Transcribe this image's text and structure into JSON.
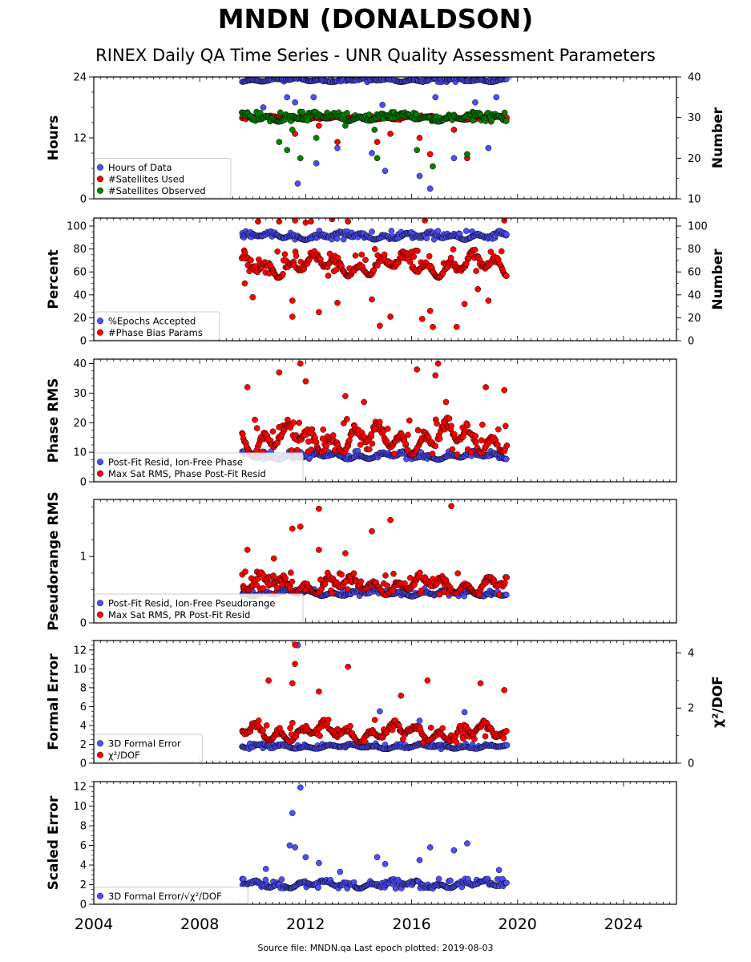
{
  "header": {
    "title": "MNDN (DONALDSON)",
    "subtitle": "RINEX Daily QA Time Series - UNR Quality Assessment Parameters"
  },
  "footer": {
    "source_note": "Source file: MNDN.qa Last epoch plotted: 2019-08-03"
  },
  "colors": {
    "blue": "#4d4dff",
    "red": "#ff0000",
    "green": "#009000",
    "navy": "#1a1a6e",
    "marker_edge": "#000000"
  },
  "chart_data": [
    {
      "type": "scatter",
      "xlim": [
        2004,
        2026
      ],
      "x_ticks": [
        "2004",
        "2008",
        "2012",
        "2016",
        "2020",
        "2024"
      ],
      "ylabel": "Hours",
      "ylim": [
        0,
        24
      ],
      "y_ticks": [
        "0",
        "12",
        "24"
      ],
      "y2label": "Number",
      "y2lim": [
        10,
        40
      ],
      "y2_ticks": [
        "10",
        "20",
        "30",
        "40"
      ],
      "legend_position": "lower-left",
      "series": [
        {
          "name": "Hours of Data",
          "color": "#4d4dff",
          "axis": "left",
          "band": [
            23.0,
            24.0
          ],
          "drops": [
            [
              2011.3,
              20
            ],
            [
              2011.6,
              19
            ],
            [
              2011.8,
              16
            ],
            [
              2010.4,
              18
            ],
            [
              2009.8,
              17
            ],
            [
              2012.4,
              7
            ],
            [
              2013.2,
              10
            ],
            [
              2014.5,
              9
            ],
            [
              2015.0,
              5.5
            ],
            [
              2016.3,
              4.5
            ],
            [
              2016.7,
              2
            ],
            [
              2017.6,
              8
            ],
            [
              2018.9,
              10
            ],
            [
              2019.2,
              20
            ],
            [
              2011.7,
              3
            ],
            [
              2012.3,
              20
            ],
            [
              2018.4,
              19
            ],
            [
              2014.9,
              18.5
            ],
            [
              2016.9,
              20
            ]
          ]
        },
        {
          "name": "#Satellites Used",
          "color": "#ff0000",
          "axis": "right",
          "band": [
            29.5,
            30.5
          ],
          "drops": [
            [
              2011.6,
              26
            ],
            [
              2012.5,
              28
            ],
            [
              2013.2,
              24
            ],
            [
              2014.7,
              24
            ],
            [
              2015.2,
              26
            ],
            [
              2016.3,
              25
            ],
            [
              2017.6,
              27
            ],
            [
              2018.1,
              20
            ],
            [
              2016.7,
              21
            ],
            [
              2019.0,
              29
            ]
          ]
        },
        {
          "name": "#Satellites Observed",
          "color": "#008000",
          "axis": "right",
          "band": [
            29.0,
            31.5
          ],
          "drops": [
            [
              2011.0,
              24
            ],
            [
              2011.5,
              27
            ],
            [
              2011.3,
              22
            ],
            [
              2012.4,
              25
            ],
            [
              2013.5,
              28
            ],
            [
              2014.6,
              27
            ],
            [
              2016.2,
              22
            ],
            [
              2016.8,
              18
            ],
            [
              2018.1,
              21
            ],
            [
              2011.8,
              20
            ],
            [
              2014.7,
              20
            ]
          ]
        }
      ]
    },
    {
      "type": "scatter",
      "xlim": [
        2004,
        2026
      ],
      "x_ticks": [
        "2004",
        "2008",
        "2012",
        "2016",
        "2020",
        "2024"
      ],
      "ylabel": "Percent",
      "ylim": [
        0,
        107
      ],
      "y_ticks": [
        "0",
        "20",
        "40",
        "60",
        "80",
        "100"
      ],
      "y2label": "Number",
      "y2lim": [
        0,
        107
      ],
      "y2_ticks": [
        "0",
        "20",
        "40",
        "60",
        "80",
        "100"
      ],
      "legend_position": "lower-left",
      "series": [
        {
          "name": "%Epochs Accepted",
          "color": "#4d4dff",
          "axis": "left",
          "band": [
            88,
            96
          ],
          "drops": []
        },
        {
          "name": "#Phase Bias Params",
          "color": "#ff0000",
          "axis": "right",
          "band": [
            55,
            80
          ],
          "drops": [
            [
              2011.0,
              104
            ],
            [
              2011.6,
              105
            ],
            [
              2012.0,
              103
            ],
            [
              2012.2,
              104
            ],
            [
              2013.0,
              106
            ],
            [
              2013.6,
              104
            ],
            [
              2016.5,
              105
            ],
            [
              2019.5,
              105
            ],
            [
              2011.5,
              21
            ],
            [
              2012.5,
              25
            ],
            [
              2013.2,
              33
            ],
            [
              2014.5,
              36
            ],
            [
              2014.8,
              13
            ],
            [
              2015.2,
              21
            ],
            [
              2016.4,
              19
            ],
            [
              2016.8,
              12
            ],
            [
              2016.7,
              26
            ],
            [
              2017.7,
              12
            ],
            [
              2018.0,
              32
            ],
            [
              2018.5,
              45
            ],
            [
              2018.9,
              35
            ],
            [
              2010.0,
              38
            ],
            [
              2011.5,
              35
            ],
            [
              2010.2,
              104
            ],
            [
              2009.7,
              50
            ]
          ]
        }
      ]
    },
    {
      "type": "scatter",
      "xlim": [
        2004,
        2026
      ],
      "x_ticks": [
        "2004",
        "2008",
        "2012",
        "2016",
        "2020",
        "2024"
      ],
      "ylabel": "Phase RMS",
      "ylim": [
        0,
        41.5
      ],
      "y_ticks": [
        "0",
        "10",
        "20",
        "30",
        "40"
      ],
      "legend_position": "lower-left",
      "series": [
        {
          "name": "Post-Fit Resid, Ion-Free Phase",
          "color": "#4d4dff",
          "axis": "left",
          "band": [
            7.5,
            10.5
          ],
          "drops": []
        },
        {
          "name": "Max Sat RMS, Phase Post-Fit Resid",
          "color": "#ff0000",
          "axis": "left",
          "band": [
            9,
            22
          ],
          "drops": [
            [
              2011.8,
              40
            ],
            [
              2011.0,
              37
            ],
            [
              2016.2,
              38
            ],
            [
              2016.9,
              36
            ],
            [
              2017.0,
              40
            ],
            [
              2017.3,
              27
            ],
            [
              2018.8,
              32
            ],
            [
              2019.5,
              31
            ],
            [
              2013.5,
              29
            ],
            [
              2009.8,
              32
            ],
            [
              2012.0,
              34
            ],
            [
              2014.2,
              27
            ]
          ]
        }
      ]
    },
    {
      "type": "scatter",
      "xlim": [
        2004,
        2026
      ],
      "x_ticks": [
        "2004",
        "2008",
        "2012",
        "2016",
        "2020",
        "2024"
      ],
      "ylabel": "Pseudorange RMS",
      "ylim": [
        0,
        1.86
      ],
      "y_ticks": [
        "0",
        "1"
      ],
      "legend_position": "lower-left",
      "series": [
        {
          "name": "Post-Fit Resid, Ion-Free Pseudorange",
          "color": "#4d4dff",
          "axis": "left",
          "band": [
            0.4,
            0.52
          ],
          "drops": []
        },
        {
          "name": "Max Sat RMS, PR Post-Fit Resid",
          "color": "#ff0000",
          "axis": "left",
          "band": [
            0.42,
            0.78
          ],
          "drops": [
            [
              2012.5,
              1.72
            ],
            [
              2017.5,
              1.76
            ],
            [
              2014.5,
              1.38
            ],
            [
              2015.2,
              1.55
            ],
            [
              2011.5,
              1.42
            ],
            [
              2011.8,
              1.45
            ],
            [
              2009.8,
              1.1
            ],
            [
              2012.5,
              1.1
            ],
            [
              2013.5,
              1.05
            ],
            [
              2010.8,
              0.97
            ]
          ]
        }
      ]
    },
    {
      "type": "scatter",
      "xlim": [
        2004,
        2026
      ],
      "x_ticks": [
        "2004",
        "2008",
        "2012",
        "2016",
        "2020",
        "2024"
      ],
      "ylabel": "Formal Error",
      "ylim": [
        0,
        13
      ],
      "y_ticks": [
        "0",
        "2",
        "4",
        "6",
        "8",
        "10",
        "12"
      ],
      "y2label": "χ²/DOF",
      "y2lim": [
        0,
        4.45
      ],
      "y2_ticks": [
        "0",
        "2",
        "4"
      ],
      "legend_position": "lower-left",
      "series": [
        {
          "name": "3D Formal Error",
          "color": "#4d4dff",
          "axis": "left",
          "band": [
            1.5,
            2.1
          ],
          "drops": [
            [
              2011.7,
              12.5
            ],
            [
              2014.8,
              5.5
            ],
            [
              2016.3,
              4.5
            ],
            [
              2018.0,
              5.4
            ]
          ]
        },
        {
          "name": "χ²/DOF",
          "color": "#ff0000",
          "axis": "right",
          "band": [
            0.75,
            1.6
          ],
          "drops": [
            [
              2011.6,
              4.3
            ],
            [
              2011.6,
              3.6
            ],
            [
              2013.6,
              3.5
            ],
            [
              2010.6,
              3.0
            ],
            [
              2016.6,
              3.0
            ],
            [
              2018.6,
              2.9
            ],
            [
              2019.5,
              2.65
            ],
            [
              2011.5,
              2.9
            ],
            [
              2012.5,
              2.6
            ],
            [
              2015.6,
              2.45
            ]
          ]
        }
      ]
    },
    {
      "type": "scatter",
      "xlim": [
        2004,
        2026
      ],
      "x_ticks": [
        "2004",
        "2008",
        "2012",
        "2016",
        "2020",
        "2024"
      ],
      "ylabel": "Scaled Error",
      "ylim": [
        0,
        12.5
      ],
      "y_ticks": [
        "0",
        "2",
        "4",
        "6",
        "8",
        "10",
        "12"
      ],
      "legend_position": "lower-left",
      "series": [
        {
          "name": "3D Formal Error/√χ²/DOF",
          "color": "#4d4dff",
          "axis": "left",
          "band": [
            1.6,
            2.6
          ],
          "drops": [
            [
              2011.8,
              11.9
            ],
            [
              2011.5,
              9.3
            ],
            [
              2011.4,
              6.0
            ],
            [
              2011.6,
              5.8
            ],
            [
              2012.0,
              4.8
            ],
            [
              2014.7,
              4.8
            ],
            [
              2016.3,
              4.5
            ],
            [
              2016.7,
              5.8
            ],
            [
              2017.6,
              5.5
            ],
            [
              2018.1,
              6.2
            ],
            [
              2015.0,
              4.1
            ],
            [
              2012.5,
              4.2
            ],
            [
              2010.5,
              3.6
            ],
            [
              2019.3,
              3.5
            ],
            [
              2013.3,
              3.3
            ]
          ]
        }
      ]
    }
  ]
}
